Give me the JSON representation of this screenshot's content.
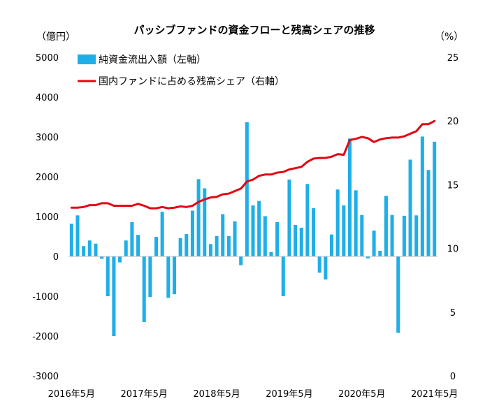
{
  "chart_data": {
    "type": "bar+line",
    "title": "パッシブファンドの資金フローと残高シェアの推移",
    "left_unit": "（億円）",
    "right_unit": "（%）",
    "left_axis": {
      "min": -3000,
      "max": 5000,
      "ticks": [
        5000,
        4000,
        3000,
        2000,
        1000,
        0,
        -1000,
        -2000,
        -3000
      ],
      "tick_labels": [
        "5000",
        "4000",
        "3000",
        "2000",
        "1000",
        "0",
        "-1000",
        "-2000",
        "-3000"
      ]
    },
    "right_axis": {
      "min": 0,
      "max": 25,
      "ticks": [
        25,
        20,
        15,
        10,
        5,
        0
      ],
      "tick_labels": [
        "25",
        "20",
        "15",
        "10",
        "5",
        "0"
      ]
    },
    "x_tick_labels": [
      "2016年5月",
      "2017年5月",
      "2018年5月",
      "2019年5月",
      "2020年5月",
      "2021年5月"
    ],
    "x_tick_months": [
      "2016-05",
      "2017-05",
      "2018-05",
      "2019-05",
      "2020-05",
      "2021-05"
    ],
    "months": [
      "2016-05",
      "2016-06",
      "2016-07",
      "2016-08",
      "2016-09",
      "2016-10",
      "2016-11",
      "2016-12",
      "2017-01",
      "2017-02",
      "2017-03",
      "2017-04",
      "2017-05",
      "2017-06",
      "2017-07",
      "2017-08",
      "2017-09",
      "2017-10",
      "2017-11",
      "2017-12",
      "2018-01",
      "2018-02",
      "2018-03",
      "2018-04",
      "2018-05",
      "2018-06",
      "2018-07",
      "2018-08",
      "2018-09",
      "2018-10",
      "2018-11",
      "2018-12",
      "2019-01",
      "2019-02",
      "2019-03",
      "2019-04",
      "2019-05",
      "2019-06",
      "2019-07",
      "2019-08",
      "2019-09",
      "2019-10",
      "2019-11",
      "2019-12",
      "2020-01",
      "2020-02",
      "2020-03",
      "2020-04",
      "2020-05",
      "2020-06",
      "2020-07",
      "2020-08",
      "2020-09",
      "2020-10",
      "2020-11",
      "2020-12",
      "2021-01",
      "2021-02",
      "2021-03",
      "2021-04",
      "2021-05"
    ],
    "legend": [
      {
        "label": "純資金流出入額（左軸）",
        "color": "#1FAEE8",
        "kind": "bar"
      },
      {
        "label": "国内ファンドに占める残高シェア（右軸）",
        "color": "#E30613",
        "kind": "line"
      }
    ],
    "legend_position": "top-left",
    "grid": false,
    "series": [
      {
        "name": "純資金流出入額（左軸）",
        "axis": "left",
        "type": "bar",
        "color": "#1FAEE8",
        "values": [
          820,
          1030,
          260,
          400,
          320,
          -60,
          -1000,
          -2000,
          -150,
          400,
          860,
          540,
          -1650,
          -1020,
          490,
          1120,
          -1040,
          -950,
          460,
          560,
          1150,
          1940,
          1710,
          310,
          510,
          1060,
          510,
          880,
          -220,
          3370,
          1280,
          1390,
          1010,
          110,
          860,
          -1000,
          1930,
          790,
          720,
          1820,
          1210,
          -410,
          -580,
          550,
          1680,
          1280,
          2960,
          1660,
          1040,
          -50,
          650,
          140,
          1520,
          1040,
          -1920,
          1020,
          2430,
          1030,
          3010,
          2170,
          2880
        ]
      },
      {
        "name": "国内ファンドに占める残高シェア（右軸）",
        "axis": "right",
        "type": "line",
        "color": "#E30613",
        "values": [
          13.2,
          13.2,
          13.25,
          13.4,
          13.4,
          13.55,
          13.55,
          13.35,
          13.35,
          13.35,
          13.35,
          13.5,
          13.35,
          13.15,
          13.15,
          13.25,
          13.15,
          13.2,
          13.3,
          13.25,
          13.35,
          13.65,
          13.85,
          14.0,
          14.05,
          14.25,
          14.3,
          14.5,
          14.7,
          15.25,
          15.4,
          15.7,
          15.8,
          15.8,
          15.95,
          16.0,
          16.2,
          16.3,
          16.4,
          16.8,
          17.05,
          17.1,
          17.1,
          17.2,
          17.4,
          17.35,
          18.5,
          18.6,
          18.75,
          18.65,
          18.35,
          18.55,
          18.65,
          18.7,
          18.7,
          18.8,
          19.0,
          19.2,
          19.75,
          19.75,
          20.0
        ]
      }
    ]
  }
}
